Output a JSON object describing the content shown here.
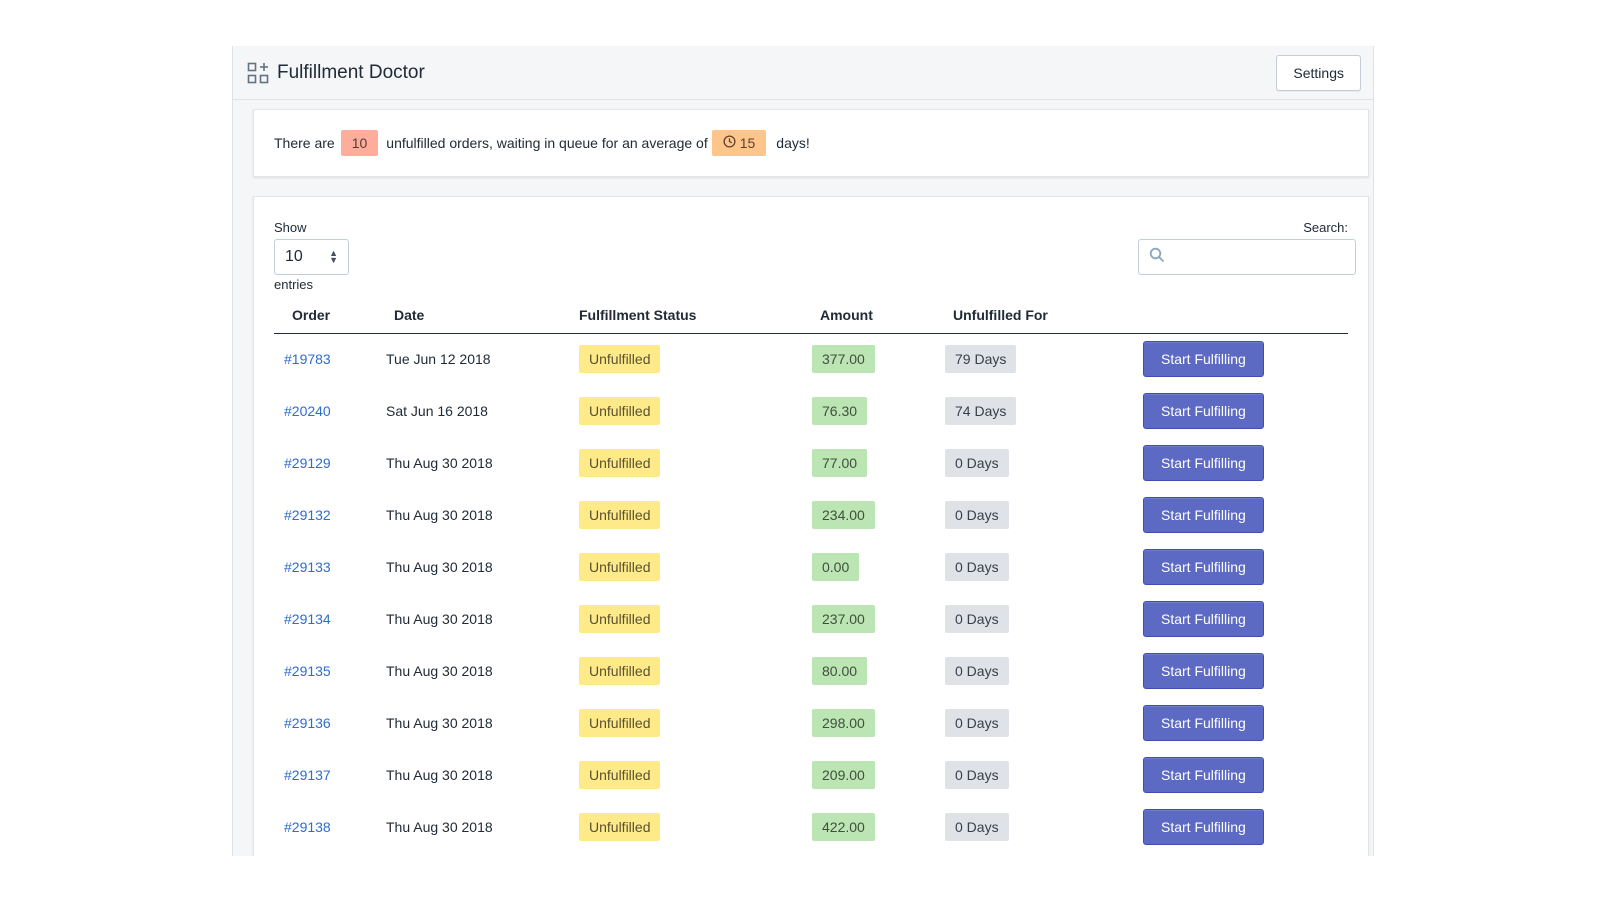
{
  "app": {
    "title": "Fulfillment Doctor",
    "settings_label": "Settings",
    "brand_icon": "apps-grid-icon"
  },
  "banner": {
    "prefix": "There are",
    "count": "10",
    "middle": "unfulfilled orders, waiting in queue for an average of",
    "avg_days": "15",
    "suffix": "days!",
    "clock_icon": "clock-icon"
  },
  "table": {
    "show_label": "Show",
    "page_length": "10",
    "entries_label": "entries",
    "search_label": "Search:",
    "search_value": "",
    "columns": [
      "Order",
      "Date",
      "Fulfillment Status",
      "Amount",
      "Unfulfilled For",
      ""
    ],
    "rows": [
      {
        "order": "#19783",
        "date": "Tue Jun 12 2018",
        "status": "Unfulfilled",
        "amount": "377.00",
        "unfulfilled_for": "79 Days",
        "action": "Start Fulfilling"
      },
      {
        "order": "#20240",
        "date": "Sat Jun 16 2018",
        "status": "Unfulfilled",
        "amount": "76.30",
        "unfulfilled_for": "74 Days",
        "action": "Start Fulfilling"
      },
      {
        "order": "#29129",
        "date": "Thu Aug 30 2018",
        "status": "Unfulfilled",
        "amount": "77.00",
        "unfulfilled_for": "0 Days",
        "action": "Start Fulfilling"
      },
      {
        "order": "#29132",
        "date": "Thu Aug 30 2018",
        "status": "Unfulfilled",
        "amount": "234.00",
        "unfulfilled_for": "0 Days",
        "action": "Start Fulfilling"
      },
      {
        "order": "#29133",
        "date": "Thu Aug 30 2018",
        "status": "Unfulfilled",
        "amount": "0.00",
        "unfulfilled_for": "0 Days",
        "action": "Start Fulfilling"
      },
      {
        "order": "#29134",
        "date": "Thu Aug 30 2018",
        "status": "Unfulfilled",
        "amount": "237.00",
        "unfulfilled_for": "0 Days",
        "action": "Start Fulfilling"
      },
      {
        "order": "#29135",
        "date": "Thu Aug 30 2018",
        "status": "Unfulfilled",
        "amount": "80.00",
        "unfulfilled_for": "0 Days",
        "action": "Start Fulfilling"
      },
      {
        "order": "#29136",
        "date": "Thu Aug 30 2018",
        "status": "Unfulfilled",
        "amount": "298.00",
        "unfulfilled_for": "0 Days",
        "action": "Start Fulfilling"
      },
      {
        "order": "#29137",
        "date": "Thu Aug 30 2018",
        "status": "Unfulfilled",
        "amount": "209.00",
        "unfulfilled_for": "0 Days",
        "action": "Start Fulfilling"
      },
      {
        "order": "#29138",
        "date": "Thu Aug 30 2018",
        "status": "Unfulfilled",
        "amount": "422.00",
        "unfulfilled_for": "0 Days",
        "action": "Start Fulfilling"
      }
    ]
  },
  "colors": {
    "primary": "#5c6ac4",
    "link": "#2c6ecb",
    "status_yellow": "#ffea8a",
    "amount_green": "#bbe5b3",
    "days_gray": "#dfe3e8",
    "count_red": "#fead9a",
    "avg_orange": "#ffc58b"
  }
}
